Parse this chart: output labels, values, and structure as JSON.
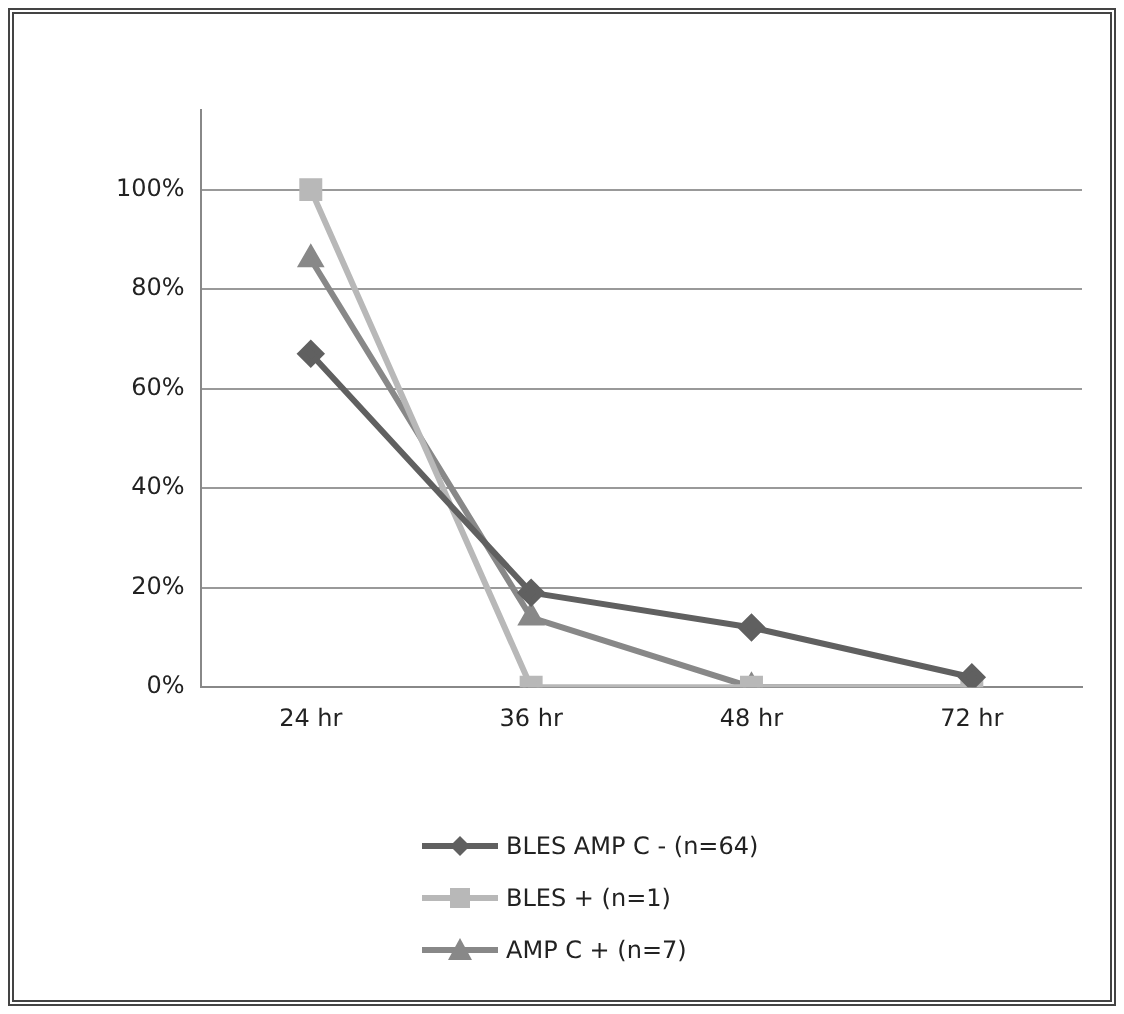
{
  "chart_data": {
    "type": "line",
    "categories": [
      "24 hr",
      "36 hr",
      "48 hr",
      "72 hr"
    ],
    "series": [
      {
        "name": "BLES AMP C - (n=64)",
        "color": "#606060",
        "values": [
          67,
          19,
          12,
          2
        ],
        "marker": "diamond"
      },
      {
        "name": "BLES + (n=1)",
        "color": "#b8b8b8",
        "values": [
          100,
          0,
          0,
          0
        ],
        "marker": "square"
      },
      {
        "name": "AMP C + (n=7)",
        "color": "#888888",
        "values": [
          86,
          14,
          0,
          0
        ],
        "marker": "triangle"
      }
    ],
    "ylim": [
      0,
      116
    ],
    "yticks": [
      {
        "value": 0,
        "label": "0%"
      },
      {
        "value": 20,
        "label": "20%"
      },
      {
        "value": 40,
        "label": "40%"
      },
      {
        "value": 60,
        "label": "60%"
      },
      {
        "value": 80,
        "label": "80%"
      },
      {
        "value": 100,
        "label": "100%"
      }
    ],
    "grid": "y",
    "legend": "bottom",
    "line_style": "solid"
  }
}
